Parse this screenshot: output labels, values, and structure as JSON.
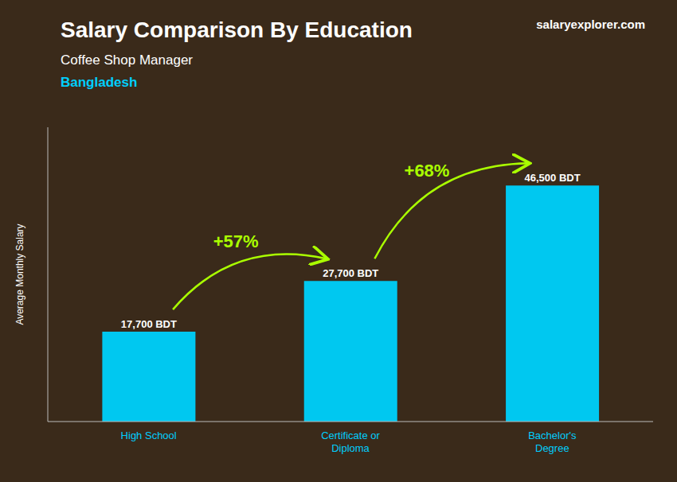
{
  "chart_data": {
    "type": "bar",
    "title": "Salary Comparison By Education",
    "subtitle": [
      "Coffee Shop Manager",
      "Bangladesh"
    ],
    "source": "salaryexplorer.com",
    "ylabel": "Average Monthly Salary",
    "categories": [
      "High School",
      "Certificate or\nDiploma",
      "Bachelor's\nDegree"
    ],
    "values": [
      17700,
      27700,
      46500
    ],
    "value_labels": [
      "17,700 BDT",
      "27,700 BDT",
      "46,500 BDT"
    ],
    "data_labels": true,
    "color": "#00C8F0",
    "ylim": [
      0,
      58000
    ],
    "grid": false,
    "tick_labels": "x",
    "annotations": [
      {
        "text": "+57%",
        "color": "#AAFF00"
      },
      {
        "text": "+68%",
        "color": "#AAFF00"
      }
    ]
  }
}
